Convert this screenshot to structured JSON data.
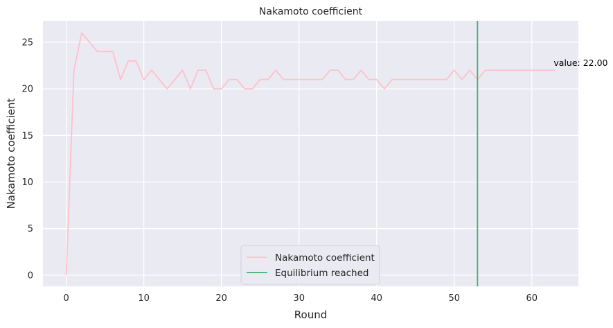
{
  "chart_data": {
    "type": "line",
    "title": "Nakamoto coefficient",
    "xlabel": "Round",
    "ylabel": "Nakamoto coefficient",
    "xlim": [
      -3,
      66
    ],
    "ylim": [
      -1.2,
      27.3
    ],
    "xticks": [
      0,
      10,
      20,
      30,
      40,
      50,
      60
    ],
    "yticks": [
      0,
      5,
      10,
      15,
      20,
      25
    ],
    "grid": true,
    "legend_position": "lower-center",
    "series": [
      {
        "name": "Nakamoto coefficient",
        "color": "#ffc0cb",
        "x": [
          0,
          1,
          2,
          3,
          4,
          5,
          6,
          7,
          8,
          9,
          10,
          11,
          12,
          13,
          14,
          15,
          16,
          17,
          18,
          19,
          20,
          21,
          22,
          23,
          24,
          25,
          26,
          27,
          28,
          29,
          30,
          31,
          32,
          33,
          34,
          35,
          36,
          37,
          38,
          39,
          40,
          41,
          42,
          43,
          44,
          45,
          46,
          47,
          48,
          49,
          50,
          51,
          52,
          53,
          54,
          55,
          56,
          57,
          58,
          59,
          60,
          61,
          62,
          63
        ],
        "values": [
          0,
          22,
          26,
          25,
          24,
          24,
          24,
          21,
          23,
          23,
          21,
          22,
          21,
          20,
          21,
          22,
          20,
          22,
          22,
          20,
          20,
          21,
          21,
          20,
          20,
          21,
          21,
          22,
          21,
          21,
          21,
          21,
          21,
          21,
          22,
          22,
          21,
          21,
          22,
          21,
          21,
          20,
          21,
          21,
          21,
          21,
          21,
          21,
          21,
          21,
          22,
          21,
          22,
          21,
          22,
          22,
          22,
          22,
          22,
          22,
          22,
          22,
          22,
          22
        ]
      }
    ],
    "vline": {
      "name": "Equilibrium reached",
      "x": 53,
      "color": "#3cb371"
    },
    "annotation": {
      "text": "value: 22.00",
      "x": 63,
      "y": 22
    }
  },
  "colors": {
    "plot_background": "#eaeaf2",
    "grid": "#ffffff"
  }
}
